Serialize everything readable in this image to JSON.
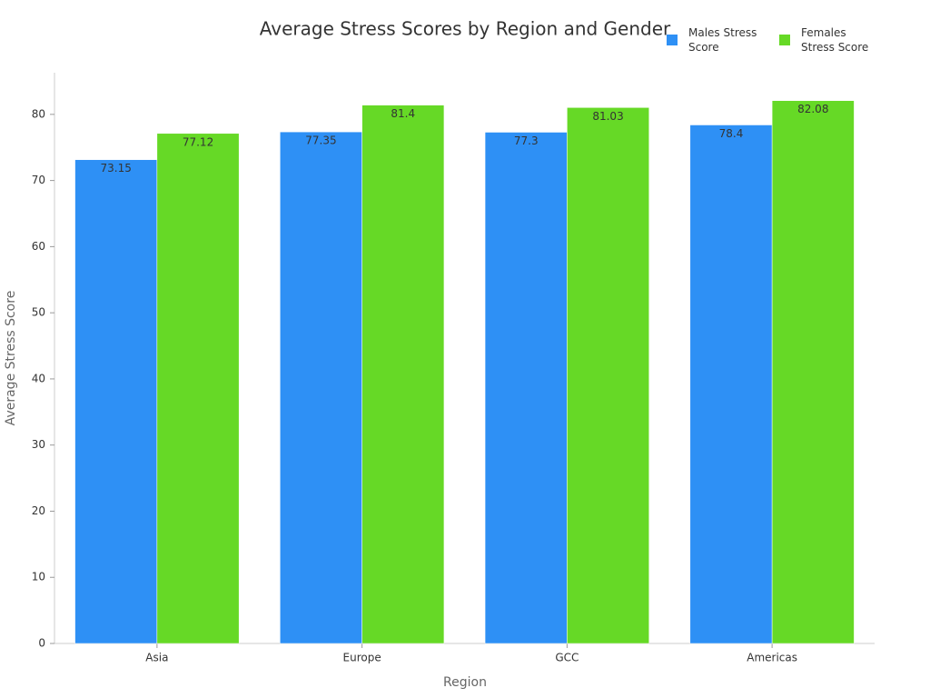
{
  "chart_data": {
    "type": "bar",
    "title": "Average Stress Scores by Region and Gender",
    "x_label": "Region",
    "y_label": "Average Stress Score",
    "categories": [
      "Asia",
      "Europe",
      "GCC",
      "Americas"
    ],
    "series": [
      {
        "name": "Males Stress Score",
        "color": "#2e90f5",
        "values": [
          73.15,
          77.35,
          77.3,
          78.4
        ]
      },
      {
        "name": "Females Stress Score",
        "color": "#66d926",
        "values": [
          77.12,
          81.4,
          81.03,
          82.08
        ]
      }
    ],
    "ylim": [
      0,
      86.3
    ],
    "yticks": [
      0,
      10,
      20,
      30,
      40,
      50,
      60,
      70,
      80
    ],
    "grid": false,
    "legend": "top-right"
  }
}
